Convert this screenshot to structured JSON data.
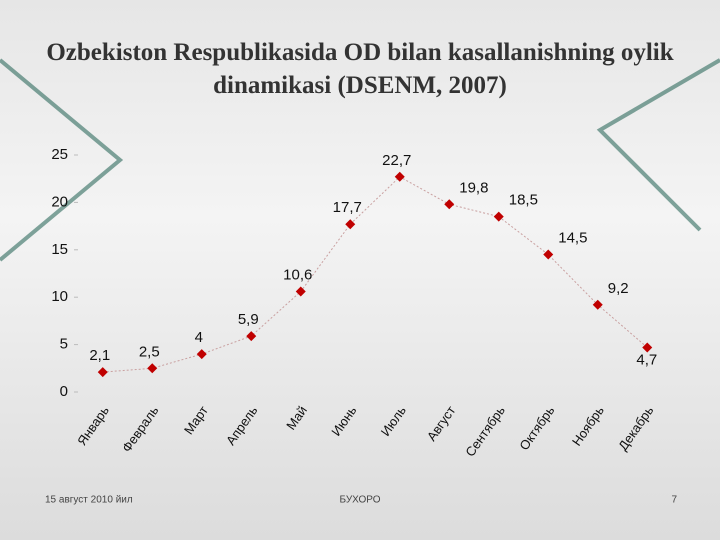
{
  "chart_data": {
    "type": "line",
    "title": "Ozbekiston Respublikasida OD bilan kasallanishning oylik dinamikasi (DSENM, 2007)",
    "categories": [
      "Январь",
      "Февраль",
      "Март",
      "Апрель",
      "Май",
      "Июнь",
      "Июль",
      "Август",
      "Сентябрь",
      "Октябрь",
      "Ноябрь",
      "Декабрь"
    ],
    "values": [
      2.1,
      2.5,
      4,
      5.9,
      10.6,
      17.7,
      22.7,
      19.8,
      18.5,
      14.5,
      9.2,
      4.7
    ],
    "value_labels": [
      "2,1",
      "2,5",
      "4",
      "5,9",
      "10,6",
      "17,7",
      "22,7",
      "19,8",
      "18,5",
      "14,5",
      "9,2",
      "4,7"
    ],
    "color": "#c00000",
    "ylim": [
      0,
      25
    ],
    "yticks": [
      0,
      5,
      10,
      15,
      20,
      25
    ]
  },
  "footer": {
    "date": "15 август 2010 йил",
    "place": "БУХОРО",
    "page": "7"
  }
}
